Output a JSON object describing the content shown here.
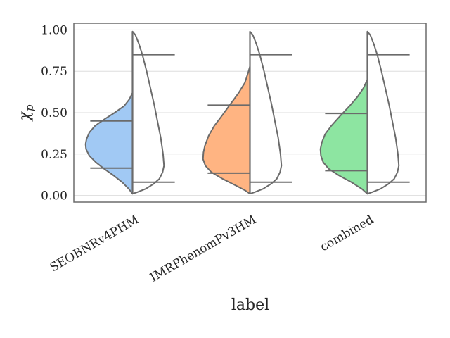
{
  "chart_data": {
    "type": "violin-split",
    "title": "",
    "xlabel": "label",
    "ylabel": "χ",
    "ylabel_subscript": "p",
    "ylim": [
      -0.04,
      1.04
    ],
    "yticks": [
      0.0,
      0.25,
      0.5,
      0.75,
      1.0
    ],
    "ytick_labels": [
      "0.00",
      "0.25",
      "0.50",
      "0.75",
      "1.00"
    ],
    "grid": "horizontal",
    "categories": [
      "SEOBNRv4PHM",
      "IMRPhenomPv3HM",
      "combined"
    ],
    "colors": {
      "left_fills": [
        "#a1c9f4",
        "#ffb482",
        "#8de5a1"
      ],
      "right_fill": "#ffffff",
      "outline": "#6b6b6b",
      "grid": "#dddddd",
      "frame": "#6b6b6b"
    },
    "violins": [
      {
        "category": "SEOBNRv4PHM",
        "left": {
          "min": 0.01,
          "max": 0.62,
          "quantiles": [
            0.165,
            0.45
          ],
          "density": [
            [
              0.01,
              0.0
            ],
            [
              0.04,
              0.08
            ],
            [
              0.08,
              0.22
            ],
            [
              0.12,
              0.4
            ],
            [
              0.16,
              0.6
            ],
            [
              0.2,
              0.78
            ],
            [
              0.24,
              0.92
            ],
            [
              0.28,
              0.99
            ],
            [
              0.31,
              1.0
            ],
            [
              0.34,
              0.98
            ],
            [
              0.38,
              0.92
            ],
            [
              0.42,
              0.8
            ],
            [
              0.46,
              0.6
            ],
            [
              0.5,
              0.38
            ],
            [
              0.54,
              0.18
            ],
            [
              0.58,
              0.07
            ],
            [
              0.62,
              0.0
            ]
          ]
        },
        "right": {
          "min": 0.01,
          "max": 0.99,
          "quantiles": [
            0.08,
            0.85
          ],
          "density": [
            [
              0.01,
              0.0
            ],
            [
              0.02,
              0.1
            ],
            [
              0.04,
              0.28
            ],
            [
              0.07,
              0.45
            ],
            [
              0.1,
              0.57
            ],
            [
              0.14,
              0.64
            ],
            [
              0.18,
              0.67
            ],
            [
              0.25,
              0.65
            ],
            [
              0.35,
              0.6
            ],
            [
              0.45,
              0.53
            ],
            [
              0.55,
              0.46
            ],
            [
              0.65,
              0.38
            ],
            [
              0.75,
              0.3
            ],
            [
              0.85,
              0.21
            ],
            [
              0.92,
              0.13
            ],
            [
              0.97,
              0.06
            ],
            [
              0.99,
              0.0
            ]
          ]
        }
      },
      {
        "category": "IMRPhenomPv3HM",
        "left": {
          "min": 0.01,
          "max": 0.78,
          "quantiles": [
            0.135,
            0.545
          ],
          "density": [
            [
              0.01,
              0.0
            ],
            [
              0.03,
              0.1
            ],
            [
              0.06,
              0.3
            ],
            [
              0.1,
              0.58
            ],
            [
              0.14,
              0.82
            ],
            [
              0.18,
              0.95
            ],
            [
              0.22,
              1.0
            ],
            [
              0.26,
              0.99
            ],
            [
              0.3,
              0.96
            ],
            [
              0.36,
              0.88
            ],
            [
              0.42,
              0.76
            ],
            [
              0.48,
              0.6
            ],
            [
              0.55,
              0.42
            ],
            [
              0.62,
              0.24
            ],
            [
              0.68,
              0.11
            ],
            [
              0.74,
              0.04
            ],
            [
              0.78,
              0.0
            ]
          ]
        },
        "right": {
          "min": 0.01,
          "max": 0.99,
          "quantiles": [
            0.08,
            0.85
          ],
          "density": [
            [
              0.01,
              0.0
            ],
            [
              0.02,
              0.1
            ],
            [
              0.04,
              0.28
            ],
            [
              0.07,
              0.45
            ],
            [
              0.1,
              0.57
            ],
            [
              0.14,
              0.64
            ],
            [
              0.18,
              0.67
            ],
            [
              0.25,
              0.65
            ],
            [
              0.35,
              0.6
            ],
            [
              0.45,
              0.53
            ],
            [
              0.55,
              0.46
            ],
            [
              0.65,
              0.38
            ],
            [
              0.75,
              0.3
            ],
            [
              0.85,
              0.21
            ],
            [
              0.92,
              0.13
            ],
            [
              0.97,
              0.06
            ],
            [
              0.99,
              0.0
            ]
          ]
        }
      },
      {
        "category": "combined",
        "left": {
          "min": 0.01,
          "max": 0.7,
          "quantiles": [
            0.15,
            0.495
          ],
          "density": [
            [
              0.01,
              0.0
            ],
            [
              0.04,
              0.12
            ],
            [
              0.08,
              0.34
            ],
            [
              0.12,
              0.6
            ],
            [
              0.16,
              0.82
            ],
            [
              0.2,
              0.94
            ],
            [
              0.24,
              0.99
            ],
            [
              0.28,
              1.0
            ],
            [
              0.32,
              0.97
            ],
            [
              0.37,
              0.9
            ],
            [
              0.42,
              0.77
            ],
            [
              0.48,
              0.58
            ],
            [
              0.54,
              0.38
            ],
            [
              0.6,
              0.2
            ],
            [
              0.65,
              0.08
            ],
            [
              0.7,
              0.0
            ]
          ]
        },
        "right": {
          "min": 0.01,
          "max": 0.99,
          "quantiles": [
            0.08,
            0.85
          ],
          "density": [
            [
              0.01,
              0.0
            ],
            [
              0.02,
              0.1
            ],
            [
              0.04,
              0.28
            ],
            [
              0.07,
              0.45
            ],
            [
              0.1,
              0.57
            ],
            [
              0.14,
              0.64
            ],
            [
              0.18,
              0.67
            ],
            [
              0.25,
              0.65
            ],
            [
              0.35,
              0.6
            ],
            [
              0.45,
              0.53
            ],
            [
              0.55,
              0.46
            ],
            [
              0.65,
              0.38
            ],
            [
              0.75,
              0.3
            ],
            [
              0.85,
              0.21
            ],
            [
              0.92,
              0.13
            ],
            [
              0.97,
              0.06
            ],
            [
              0.99,
              0.0
            ]
          ]
        }
      }
    ]
  }
}
